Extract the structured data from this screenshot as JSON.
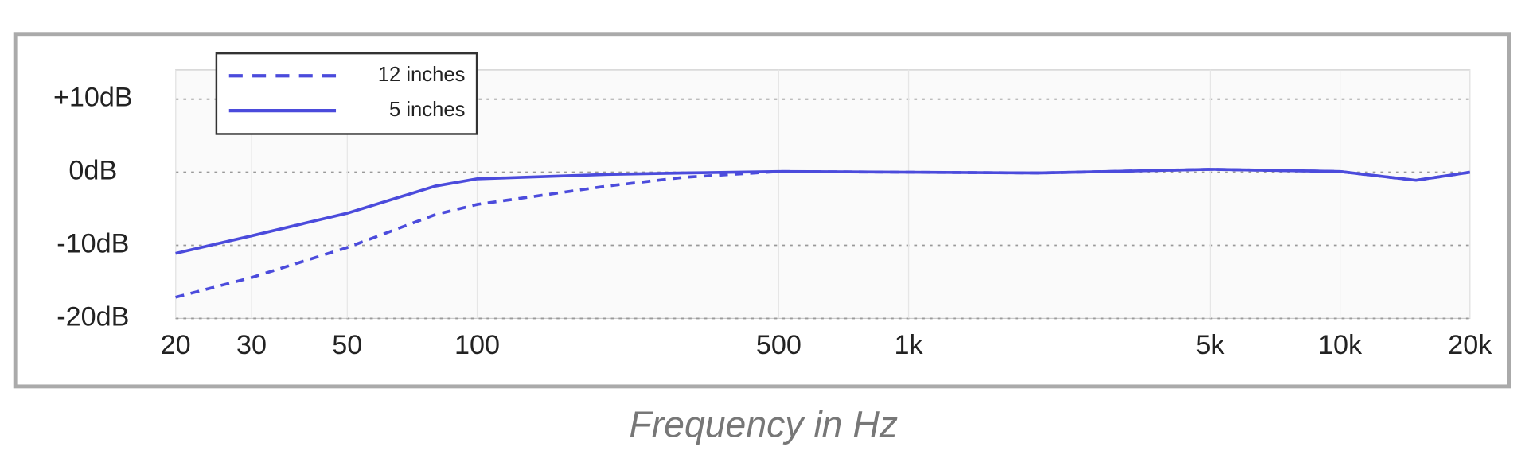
{
  "chart_data": {
    "type": "line",
    "xlabel": "Frequency in Hz",
    "x": [
      20,
      30,
      50,
      80,
      100,
      200,
      300,
      500,
      1000,
      2000,
      5000,
      10000,
      15000,
      20000
    ],
    "series": [
      {
        "name": "12 inches",
        "color": "#4b4bdc",
        "dash": true,
        "values": [
          -17.1,
          -14.4,
          -10.3,
          -5.8,
          -4.4,
          -1.9,
          -0.7,
          0.1,
          0,
          -0.1,
          0.4,
          0.1,
          -1.1,
          0
        ]
      },
      {
        "name": "5 inches",
        "color": "#4b4bdc",
        "dash": false,
        "values": [
          -11.1,
          -8.7,
          -5.6,
          -1.9,
          -0.9,
          -0.3,
          -0.1,
          0.1,
          0,
          -0.1,
          0.4,
          0.1,
          -1.1,
          0
        ]
      }
    ],
    "log_x": true,
    "xlim": [
      20,
      20000
    ],
    "xticks": [
      20,
      30,
      50,
      100,
      500,
      {
        "value": 1000,
        "label": "1k"
      },
      {
        "value": 5000,
        "label": "5k"
      },
      {
        "value": 10000,
        "label": "10k"
      },
      {
        "value": 20000,
        "label": "20k"
      }
    ],
    "ylim": [
      -20,
      14
    ],
    "yticks": [
      {
        "value": 10,
        "label": "+10dB"
      },
      {
        "value": 0,
        "label": "0dB"
      },
      {
        "value": -10,
        "label": "-10dB"
      },
      {
        "value": -20,
        "label": "-20dB"
      }
    ],
    "grid": true,
    "legend": "upper left"
  }
}
